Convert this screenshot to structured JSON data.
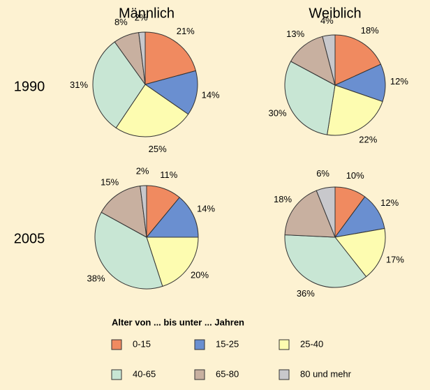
{
  "column_titles": [
    "Männlich",
    "Weiblich"
  ],
  "row_titles": [
    "1990",
    "2005"
  ],
  "legend": {
    "title": "Alter von ... bis unter ... Jahren",
    "categories": [
      "0-15",
      "15-25",
      "25-40",
      "40-65",
      "65-80",
      "80 und mehr"
    ],
    "colors": [
      "#f08a60",
      "#6a8fd0",
      "#fdfcb0",
      "#c8e6d4",
      "#c8b0a0",
      "#c8c8cc"
    ]
  },
  "chart_data": [
    {
      "type": "pie",
      "values": [
        21,
        14,
        25,
        31,
        8,
        2
      ],
      "value_labels": [
        "21%",
        "14%",
        "25%",
        "31%",
        "8%",
        "2%"
      ]
    },
    {
      "type": "pie",
      "values": [
        18,
        12,
        22,
        30,
        13,
        4
      ],
      "value_labels": [
        "18%",
        "12%",
        "22%",
        "30%",
        "13%",
        "4%"
      ]
    },
    {
      "type": "pie",
      "values": [
        11,
        14,
        20,
        38,
        15,
        2
      ],
      "value_labels": [
        "11%",
        "14%",
        "20%",
        "38%",
        "15%",
        "2%"
      ]
    },
    {
      "type": "pie",
      "values": [
        10,
        12,
        17,
        36,
        18,
        6
      ],
      "value_labels": [
        "10%",
        "12%",
        "17%",
        "36%",
        "18%",
        "6%"
      ]
    }
  ]
}
